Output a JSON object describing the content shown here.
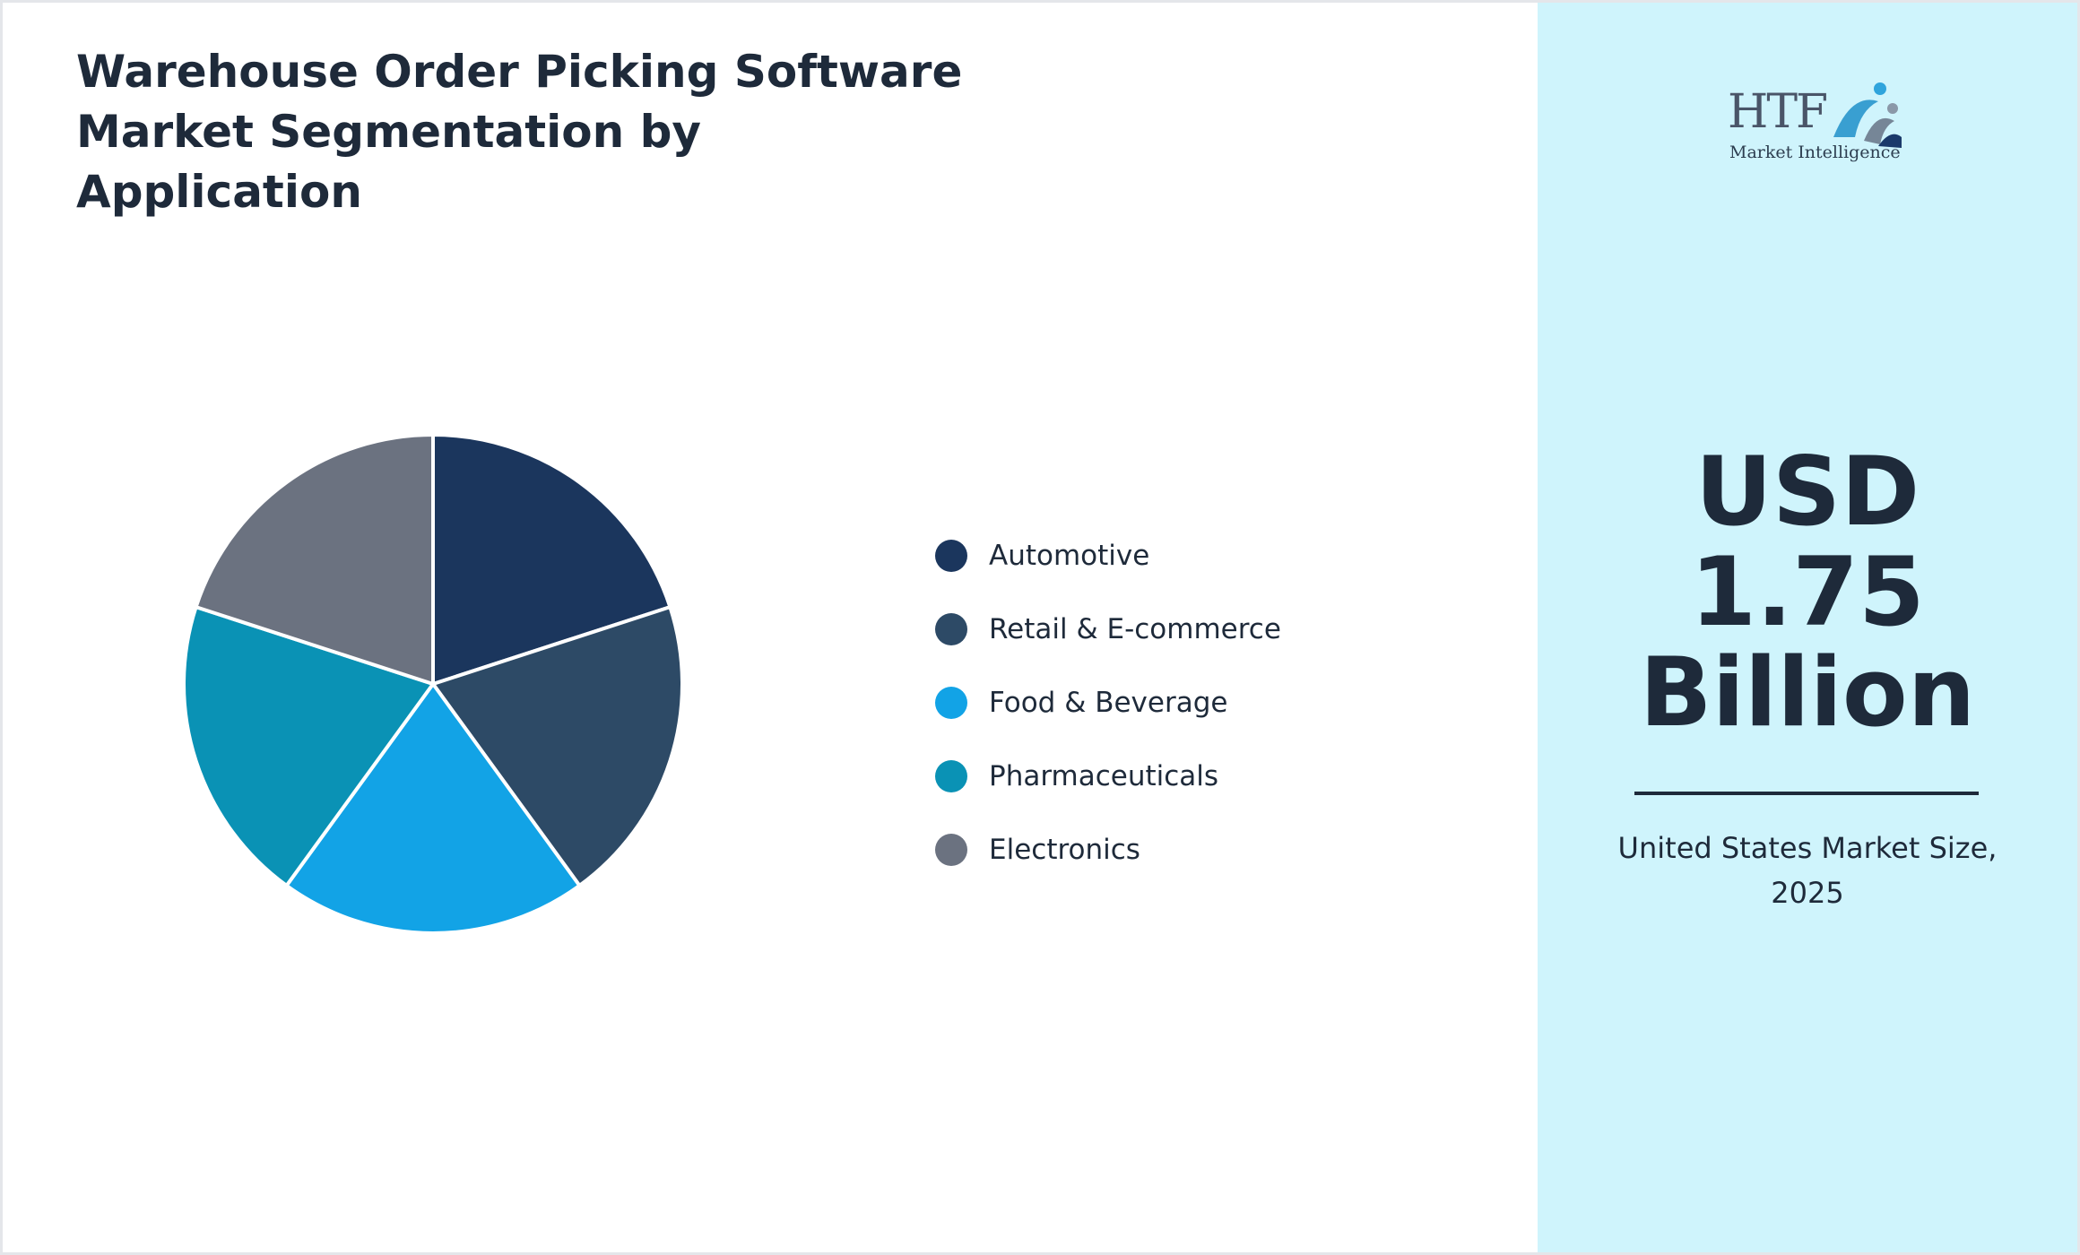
{
  "title_lines": [
    "Warehouse Order Picking Software",
    "Market Segmentation by",
    "Application"
  ],
  "chart_data": {
    "type": "pie",
    "categories": [
      "Automotive",
      "Retail & E-commerce",
      "Food & Beverage",
      "Pharmaceuticals",
      "Electronics"
    ],
    "values": [
      20,
      20,
      20,
      20,
      20
    ],
    "colors": [
      "#1b365d",
      "#2d4a66",
      "#12a3e6",
      "#0a92b5",
      "#6b7280"
    ],
    "legend_position": "right"
  },
  "logo": {
    "letters": "HTF",
    "subtitle": "Market Intelligence"
  },
  "market_value": {
    "lines": [
      "USD",
      "1.75",
      "Billion"
    ],
    "caption_lines": [
      "United States Market Size,",
      "2025"
    ]
  }
}
